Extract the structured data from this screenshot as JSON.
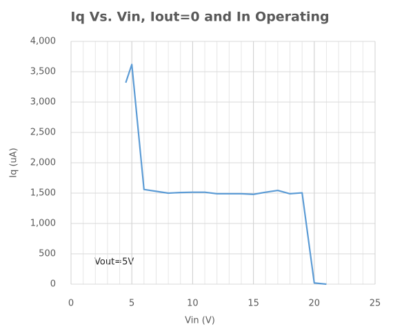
{
  "chart_data": {
    "type": "line",
    "title": "Iq Vs. Vin, Iout=0 and In Operating",
    "xlabel": "Vin (V)",
    "ylabel": "Iq (uA)",
    "annotation": "Vout=5V",
    "x": [
      4.5,
      5,
      6,
      7,
      8,
      9,
      10,
      11,
      12,
      13,
      14,
      15,
      16,
      17,
      18,
      19,
      20,
      21
    ],
    "values": [
      3320,
      3620,
      1560,
      1530,
      1500,
      1510,
      1515,
      1515,
      1490,
      1490,
      1490,
      1480,
      1515,
      1545,
      1490,
      1505,
      20,
      0
    ],
    "color": "#5b9bd5",
    "xlim": [
      0,
      25
    ],
    "xticks": [
      0,
      5,
      10,
      15,
      20,
      25
    ],
    "x_minor_step": 1,
    "ylim": [
      0,
      4000
    ],
    "yticks": [
      0,
      500,
      {
        "value": 1000,
        "label": "1,000"
      },
      {
        "value": 1500,
        "label": "1,500"
      },
      {
        "value": 2000,
        "label": "2,000"
      },
      {
        "value": 2500,
        "label": "2,500"
      },
      {
        "value": 3000,
        "label": "3,000"
      },
      {
        "value": 3500,
        "label": "3,500"
      },
      {
        "value": 4000,
        "label": "4,000"
      }
    ],
    "grid": true
  }
}
